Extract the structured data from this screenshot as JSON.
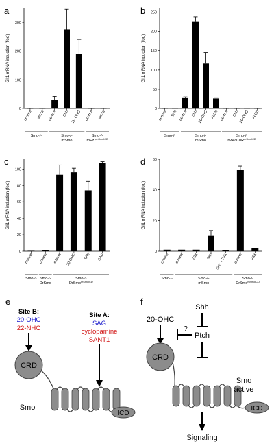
{
  "chart_data": [
    {
      "id": "a",
      "panel_label": "a",
      "type": "bar",
      "ylabel": "Gli1 mRNA induction (fold)",
      "ylim": [
        0,
        350
      ],
      "yticks": [
        0,
        100,
        200,
        300
      ],
      "categories": [
        "control",
        "wnt3a",
        "control",
        "Shh",
        "20-OHC",
        "control",
        "wnt3a"
      ],
      "values": [
        0.5,
        0.5,
        30,
        277,
        190,
        0.5,
        0.5
      ],
      "errors": [
        0,
        0,
        12,
        70,
        50,
        0,
        0
      ],
      "groups": [
        {
          "label": "Smo-/-",
          "sub": "",
          "start": 0,
          "end": 1
        },
        {
          "label": "Smo-/-",
          "sub": "mSmo",
          "start": 2,
          "end": 4
        },
        {
          "label": "Smo-/-",
          "sub": "mFz7",
          "sup": "mSmoICD",
          "start": 5,
          "end": 6
        }
      ]
    },
    {
      "id": "b",
      "panel_label": "b",
      "type": "bar",
      "ylabel": "Gli1 mRNA induction (fold)",
      "ylim": [
        0,
        260
      ],
      "yticks": [
        0,
        50,
        100,
        150,
        200,
        250
      ],
      "categories": [
        "control",
        "Shh",
        "control",
        "Shh",
        "20-OHC",
        "AcCh",
        "control",
        "Shh",
        "20-OHC",
        "AcCh"
      ],
      "values": [
        0.5,
        0.5,
        27,
        225,
        117,
        26,
        0.5,
        0.5,
        0.5,
        0.5
      ],
      "errors": [
        0,
        0,
        3,
        12,
        28,
        3,
        0,
        0,
        0,
        0
      ],
      "groups": [
        {
          "label": "Smo-/-",
          "sub": "",
          "start": 0,
          "end": 1
        },
        {
          "label": "Smo-/-",
          "sub": "mSmo",
          "start": 2,
          "end": 5
        },
        {
          "label": "Smo-/-",
          "sub": "rMAcChR",
          "sup": "mSmoICD",
          "start": 6,
          "end": 9
        }
      ]
    },
    {
      "id": "c",
      "panel_label": "c",
      "type": "bar",
      "ylabel": "Gli1 mRNA induction (fold)",
      "ylim": [
        0,
        112
      ],
      "yticks": [
        0,
        20,
        40,
        60,
        80,
        100
      ],
      "categories": [
        "control",
        "control",
        "control",
        "20-OHC",
        "Shh",
        "SAG"
      ],
      "values": [
        0.5,
        1.5,
        93,
        96,
        74,
        107
      ],
      "errors": [
        0,
        0,
        12,
        5,
        11,
        2
      ],
      "groups": [
        {
          "label": "Smo-/-",
          "sub": "",
          "start": 0,
          "end": 0
        },
        {
          "label": "Smo-/-",
          "sub": "DrSmo",
          "start": 1,
          "end": 1
        },
        {
          "label": "Smo-/-",
          "sub": "DrSmo",
          "sup": "mSmoICD",
          "start": 2,
          "end": 5
        }
      ]
    },
    {
      "id": "d",
      "panel_label": "d",
      "type": "bar",
      "ylabel": "Gli1 mRNA induction (fold)",
      "ylim": [
        0,
        60
      ],
      "yticks": [
        0,
        20,
        40,
        60
      ],
      "categories": [
        "control",
        "control",
        "FSK",
        "Shh",
        "Shh + FSK",
        "control",
        "FSK"
      ],
      "values": [
        1,
        1,
        1,
        10,
        0.5,
        53,
        2
      ],
      "errors": [
        0,
        0,
        0,
        3.5,
        0,
        2.5,
        0
      ],
      "groups": [
        {
          "label": "Smo-/-",
          "sub": "",
          "start": 0,
          "end": 0
        },
        {
          "label": "Smo-/-",
          "sub": "mSmo",
          "start": 1,
          "end": 4
        },
        {
          "label": "Smo-/-",
          "sub": "DrSmo",
          "sup": "mSmoICD",
          "start": 5,
          "end": 6
        }
      ]
    }
  ],
  "diagram_e": {
    "panel_label": "e",
    "site_b_title": "Site B:",
    "site_b_ligands": [
      "20-OHC",
      "22-NHC"
    ],
    "site_a_title": "Site A:",
    "site_a_ligands": [
      "SAG",
      "cyclopamine",
      "SANT1"
    ],
    "crd_label": "CRD",
    "icd_label": "ICD",
    "receptor_label": "Smo"
  },
  "diagram_f": {
    "panel_label": "f",
    "ligand_label": "20-OHC",
    "shh_label": "Shh",
    "ptch_label": "Ptch",
    "question_mark": "?",
    "crd_label": "CRD",
    "icd_label": "ICD",
    "receptor_label_line1": "Smo",
    "receptor_label_line2": "active",
    "output_label": "Signaling"
  },
  "colors": {
    "bar": "#000000",
    "receptor": "#8c8c8c",
    "receptor_outline": "#444444",
    "blue_text": "#1a1acc",
    "red_text": "#d01010"
  }
}
